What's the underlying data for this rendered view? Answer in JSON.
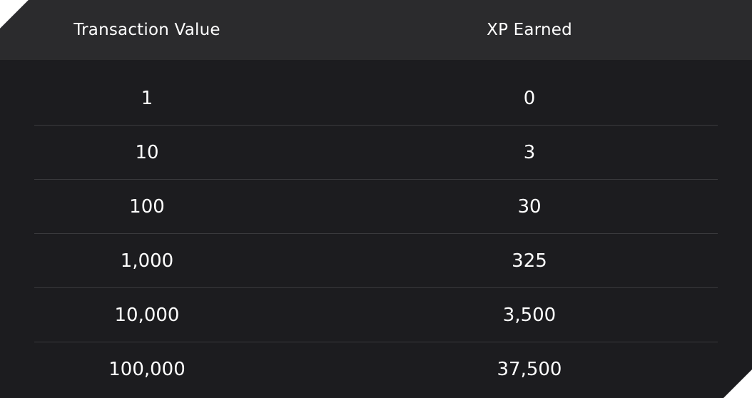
{
  "table": {
    "headers": [
      "Transaction Value",
      "XP Earned"
    ],
    "rows": [
      [
        "1",
        "0"
      ],
      [
        "10",
        "3"
      ],
      [
        "100",
        "30"
      ],
      [
        "1,000",
        "325"
      ],
      [
        "10,000",
        "3,500"
      ],
      [
        "100,000",
        "37,500"
      ]
    ]
  }
}
